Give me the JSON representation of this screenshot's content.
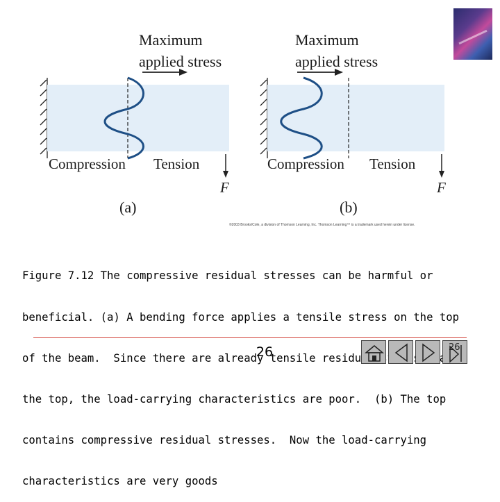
{
  "figure": {
    "panel_a": {
      "title_line1": "Maximum",
      "title_line2": "applied stress",
      "left_label": "Compression",
      "right_label": "Tension",
      "force_label": "F",
      "panel_label": "(a)"
    },
    "panel_b": {
      "title_line1": "Maximum",
      "title_line2": "applied stress",
      "left_label": "Compression",
      "right_label": "Tension",
      "force_label": "F",
      "panel_label": "(b)"
    },
    "copyright": "©2003 Brooks/Cole, a division of Thomson Learning, Inc. Thomson Learning™ is a trademark used herein under license.",
    "colors": {
      "beam_fill": "#e3eef8",
      "curve": "#1e4f86",
      "text": "#1a1a1a"
    }
  },
  "caption": "Figure 7.12 The compressive residual stresses can be harmful or beneficial. (a) A bending force applies a tensile stress on the top of the beam. Since there are already tensile residual stresses at the top, the load-carrying characteristics are poor. (b) The top contains compressive residual stresses. Now the load-carrying characteristics are very goods",
  "caption_lines": [
    "Figure 7.12 The compressive residual stresses can be harmful or",
    "beneficial. (a) A bending force applies a tensile stress on the top",
    "of the beam.  Since there are already tensile residual stresses at",
    "the top, the load-carrying characteristics are poor.  (b) The top",
    "contains compressive residual stresses.  Now the load-carrying",
    "characteristics are very goods"
  ],
  "footer": {
    "page_number": "26",
    "nav_page_number": "26",
    "nav_icons": [
      "home-icon",
      "previous-icon",
      "next-icon",
      "last-icon"
    ]
  },
  "book_cover": {
    "colors": [
      "#2b2d6e",
      "#c24a9b",
      "#3d5fb0"
    ]
  }
}
